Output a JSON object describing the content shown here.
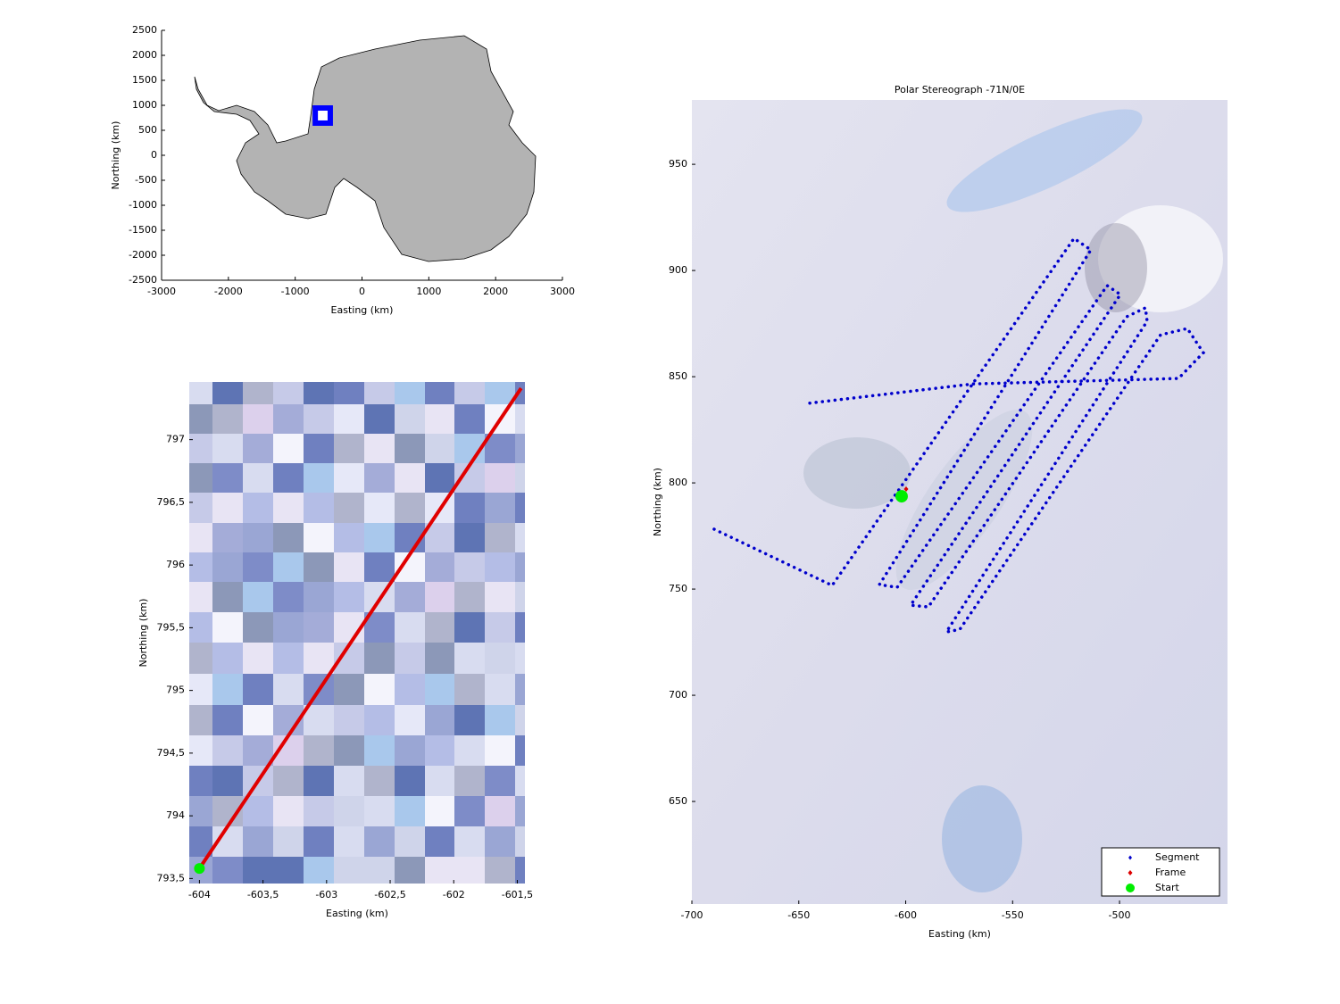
{
  "chart_data": [
    {
      "type": "map",
      "xlabel": "Easting (km)",
      "ylabel": "Northing (km)",
      "xlim": [
        -3000,
        3000
      ],
      "xticks": [
        -3000,
        -2000,
        -1000,
        0,
        1000,
        2000,
        3000
      ],
      "ylim": [
        -2500,
        2500
      ],
      "yticks": [
        -2500,
        -2000,
        -1500,
        -1000,
        -500,
        0,
        500,
        1000,
        1500,
        2000,
        2500
      ],
      "region": {
        "x": [
          -740,
          -435
        ],
        "y": [
          590,
          1000
        ],
        "color": "#0000ff"
      }
    },
    {
      "type": "image-line",
      "xlabel": "Easting (km)",
      "ylabel": "Northing (km)",
      "xlim": [
        -604.08,
        -601.44
      ],
      "xticks": [
        -604,
        {
          "value": -603.5,
          "label": "-603,5"
        },
        -603,
        {
          "value": -602.5,
          "label": "-602,5"
        },
        -602,
        {
          "value": -601.5,
          "label": "-601,5"
        }
      ],
      "ylim": [
        793.46,
        797.46
      ],
      "yticks": [
        {
          "value": 793.5,
          "label": "793,5"
        },
        794,
        {
          "value": 794.5,
          "label": "794,5"
        },
        795,
        {
          "value": 795.5,
          "label": "795,5"
        },
        796,
        {
          "value": 796.5,
          "label": "796,5"
        },
        797
      ],
      "line": {
        "x": [
          -604.0,
          -601.47
        ],
        "y": [
          793.58,
          797.41
        ],
        "color": "#e00000"
      },
      "start": {
        "x": -604.0,
        "y": 793.58,
        "color": "#00ee00"
      }
    },
    {
      "type": "image-track",
      "title": "Polar Stereograph -71N/0E",
      "xlabel": "Easting (km)",
      "ylabel": "Northing (km)",
      "xlim": [
        -700,
        -449.5
      ],
      "xticks": [
        -700,
        -650,
        -600,
        -550,
        -500
      ],
      "ylim": [
        601.7,
        980.3
      ],
      "yticks": [
        650,
        700,
        750,
        800,
        850,
        900,
        950
      ],
      "legend": "lower right",
      "series": [
        {
          "name": "Segment",
          "color": "#0000cc",
          "x": [
            -689.6,
            -634.4,
            -521.3,
            -513.4,
            -612.3,
            -604.0,
            -505.8,
            -499.6,
            -597.7,
            -589.4,
            -496.7,
            -487.9,
            -487.1,
            -581.0,
            -574.7,
            -480.8,
            -468.3,
            -460.8,
            -472.4,
            -489.1,
            -568.5,
            -646.1
          ],
          "y": [
            778.2,
            751.7,
            915.1,
            909.7,
            752.1,
            750.8,
            892.9,
            888.7,
            742.4,
            741.6,
            878.2,
            882.4,
            876.1,
            729.8,
            731.0,
            869.7,
            872.7,
            861.3,
            849.2,
            848.7,
            846.6,
            837.4
          ]
        },
        {
          "name": "Frame",
          "color": "#dd0000",
          "x": [
            -599.8
          ],
          "y": [
            797.1
          ]
        },
        {
          "name": "Start",
          "color": "#00ee00",
          "x": [
            -601.9
          ],
          "y": [
            793.7
          ]
        }
      ]
    }
  ]
}
